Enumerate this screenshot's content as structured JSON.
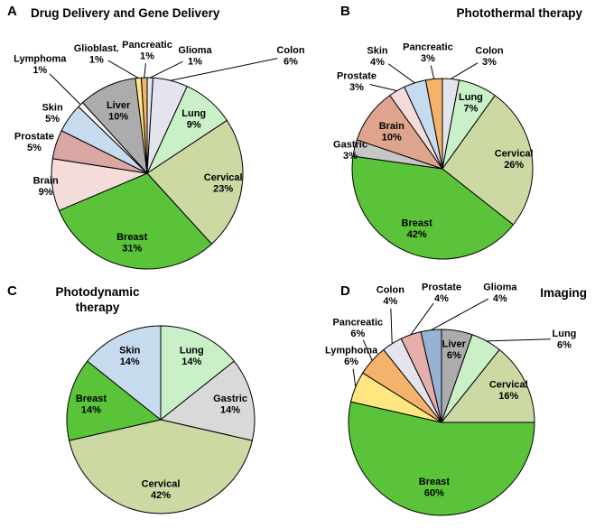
{
  "figure": {
    "background": "#ffffff",
    "label_color": "#000000",
    "outline_color": "#000000"
  },
  "chart_data": [
    {
      "panel_letter": "A",
      "title": "Drug Delivery and Gene Delivery",
      "type": "pie",
      "legend": "none",
      "slices": [
        {
          "name": "Glioma",
          "pct": 1,
          "color": "#dde7f3",
          "label": {
            "mode": "out",
            "lx": 0.5,
            "ly": -1.23,
            "line": true
          }
        },
        {
          "name": "Colon",
          "pct": 6,
          "color": "#e4e4ee",
          "label": {
            "mode": "out",
            "lx": 1.5,
            "ly": -1.23,
            "line": true
          }
        },
        {
          "name": "Lung",
          "pct": 9,
          "color": "#c9f0c7",
          "label": {
            "mode": "in",
            "lr": 0.75
          }
        },
        {
          "name": "Cervical",
          "pct": 23,
          "color": "#ccd9a3",
          "label": {
            "mode": "in",
            "lr": 0.8
          }
        },
        {
          "name": "Breast",
          "pct": 31,
          "color": "#5ac339",
          "label": {
            "mode": "in",
            "lr": 0.74
          }
        },
        {
          "name": "Brain",
          "pct": 9,
          "color": "#f3dcda",
          "label": {
            "mode": "out",
            "lx": -1.06,
            "ly": 0.13,
            "line": false
          }
        },
        {
          "name": "Prostate",
          "pct": 5,
          "color": "#d9a7a4",
          "label": {
            "mode": "out",
            "lx": -1.18,
            "ly": -0.33,
            "line": false
          }
        },
        {
          "name": "Skin",
          "pct": 5,
          "color": "#c7dbee",
          "label": {
            "mode": "out",
            "lx": -0.99,
            "ly": -0.63,
            "line": false
          }
        },
        {
          "name": "Lymphoma",
          "pct": 1,
          "color": "#f5f5f5",
          "label": {
            "mode": "out",
            "lx": -1.12,
            "ly": -1.14,
            "line": true
          }
        },
        {
          "name": "Liver",
          "pct": 10,
          "color": "#acacac",
          "label": {
            "mode": "in",
            "lr": 0.72
          }
        },
        {
          "name": "Glioblast.",
          "pct": 1,
          "color": "#ffe680",
          "label": {
            "mode": "out",
            "lx": -0.53,
            "ly": -1.25,
            "line": true
          }
        },
        {
          "name": "Pancreatic",
          "pct": 1,
          "color": "#f5b26b",
          "label": {
            "mode": "out",
            "lx": 0.0,
            "ly": -1.29,
            "line": true
          }
        }
      ]
    },
    {
      "panel_letter": "B",
      "title": "Photothermal therapy",
      "type": "pie",
      "legend": "none",
      "slices": [
        {
          "name": "Colon",
          "pct": 3,
          "color": "#e4e4ee",
          "label": {
            "mode": "out",
            "lx": 0.52,
            "ly": -1.25,
            "line": true
          }
        },
        {
          "name": "Lung",
          "pct": 7,
          "color": "#c9f0c7",
          "label": {
            "mode": "in",
            "lr": 0.8
          }
        },
        {
          "name": "Cervical",
          "pct": 26,
          "color": "#ccd9a3",
          "label": {
            "mode": "in",
            "lr": 0.8
          }
        },
        {
          "name": "Breast",
          "pct": 42,
          "color": "#5ac339",
          "label": {
            "mode": "in",
            "lr": 0.72
          }
        },
        {
          "name": "Gastric",
          "pct": 3,
          "color": "#c6c6c6",
          "label": {
            "mode": "out",
            "lx": -1.02,
            "ly": -0.21,
            "line": false
          }
        },
        {
          "name": "Brain",
          "pct": 10,
          "color": "#dfa48d",
          "label": {
            "mode": "in",
            "lr": 0.7
          }
        },
        {
          "name": "Prostate",
          "pct": 3,
          "color": "#f3dcda",
          "label": {
            "mode": "out",
            "lx": -0.95,
            "ly": -0.97,
            "line": true
          }
        },
        {
          "name": "Skin",
          "pct": 4,
          "color": "#c7dbee",
          "label": {
            "mode": "out",
            "lx": -0.72,
            "ly": -1.25,
            "line": true
          }
        },
        {
          "name": "Pancreatic",
          "pct": 3,
          "color": "#f5b26b",
          "label": {
            "mode": "out",
            "lx": -0.16,
            "ly": -1.29,
            "line": true
          }
        }
      ]
    },
    {
      "panel_letter": "C",
      "title": "Photodynamic therapy",
      "type": "pie",
      "legend": "none",
      "slices": [
        {
          "name": "Lung",
          "pct": 14,
          "color": "#c9f0c7",
          "label": {
            "mode": "in",
            "lr": 0.76
          }
        },
        {
          "name": "Gastric",
          "pct": 14,
          "color": "#d9d9d9",
          "label": {
            "mode": "in",
            "lr": 0.76
          }
        },
        {
          "name": "Cervical",
          "pct": 42,
          "color": "#ccd9a3",
          "label": {
            "mode": "in",
            "lr": 0.74
          }
        },
        {
          "name": "Breast",
          "pct": 14,
          "color": "#5ac339",
          "label": {
            "mode": "in",
            "lr": 0.76
          }
        },
        {
          "name": "Skin",
          "pct": 14,
          "color": "#c7dbee",
          "label": {
            "mode": "in",
            "lr": 0.76
          }
        }
      ]
    },
    {
      "panel_letter": "D",
      "title": "Imaging",
      "type": "pie",
      "legend": "none",
      "slices": [
        {
          "name": "Liver",
          "pct": 6,
          "color": "#acacac",
          "label": {
            "mode": "in",
            "lr": 0.8
          }
        },
        {
          "name": "Lung",
          "pct": 6,
          "color": "#c9f0c7",
          "label": {
            "mode": "out",
            "lx": 1.32,
            "ly": -0.9,
            "line": true
          }
        },
        {
          "name": "Cervical",
          "pct": 16,
          "color": "#ccd9a3",
          "label": {
            "mode": "in",
            "lr": 0.8
          }
        },
        {
          "name": "Breast",
          "pct": 60,
          "color": "#5ac339",
          "label": {
            "mode": "in",
            "lr": 0.7
          }
        },
        {
          "name": "Lymphoma",
          "pct": 6,
          "color": "#ffe680",
          "label": {
            "mode": "out",
            "lx": -0.97,
            "ly": -0.72,
            "line": true
          }
        },
        {
          "name": "Pancreatic",
          "pct": 6,
          "color": "#f5b26b",
          "label": {
            "mode": "out",
            "lx": -0.9,
            "ly": -1.02,
            "line": true
          }
        },
        {
          "name": "Colon",
          "pct": 4,
          "color": "#e4e4ee",
          "label": {
            "mode": "out",
            "lx": -0.55,
            "ly": -1.37,
            "line": true
          }
        },
        {
          "name": "Prostate",
          "pct": 4,
          "color": "#e5aeaa",
          "label": {
            "mode": "out",
            "lx": 0.0,
            "ly": -1.4,
            "line": true
          }
        },
        {
          "name": "Glioma",
          "pct": 4,
          "color": "#97b3d4",
          "label": {
            "mode": "out",
            "lx": 0.63,
            "ly": -1.4,
            "line": true
          }
        }
      ]
    }
  ]
}
